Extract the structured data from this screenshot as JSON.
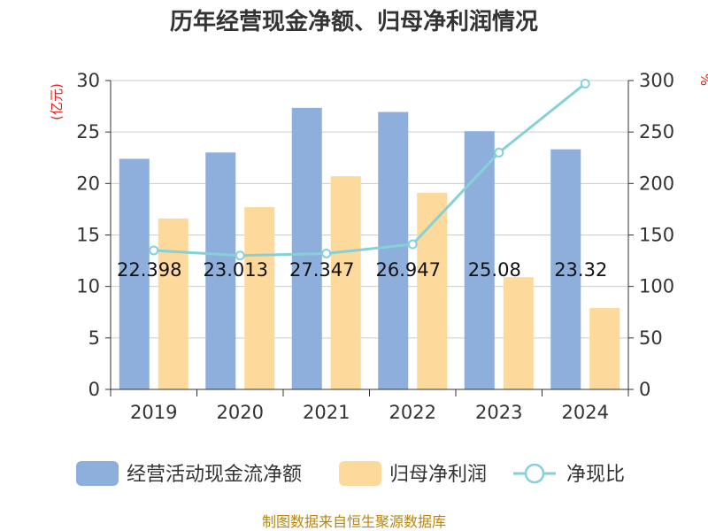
{
  "chart_data": {
    "type": "bar+line",
    "title": "历年经营现金净额、归母净利润情况",
    "categories": [
      "2019",
      "2020",
      "2021",
      "2022",
      "2023",
      "2024"
    ],
    "series": [
      {
        "name": "经营活动现金流净额",
        "type": "bar",
        "axis": "left",
        "color": "#8eaedb",
        "values": [
          22.398,
          23.013,
          27.347,
          26.947,
          25.08,
          23.32
        ],
        "labels": [
          "22.398",
          "23.013",
          "27.347",
          "26.947",
          "25.08",
          "23.32"
        ]
      },
      {
        "name": "归母净利润",
        "type": "bar",
        "axis": "left",
        "color": "#fdd99b",
        "values": [
          16.6,
          17.7,
          20.7,
          19.1,
          10.9,
          7.9
        ]
      },
      {
        "name": "净现比",
        "type": "line",
        "axis": "right",
        "color": "#86d1d8",
        "values": [
          135,
          130,
          132,
          141,
          230,
          297
        ]
      }
    ],
    "y_left": {
      "label": "(亿元)",
      "min": 0,
      "max": 30,
      "ticks": [
        0,
        5,
        10,
        15,
        20,
        25,
        30
      ]
    },
    "y_right": {
      "label": "%",
      "min": 0,
      "max": 300,
      "ticks": [
        0,
        50,
        100,
        150,
        200,
        250,
        300
      ]
    },
    "grid": true,
    "legend_position": "bottom"
  },
  "source": "制图数据来自恒生聚源数据库"
}
